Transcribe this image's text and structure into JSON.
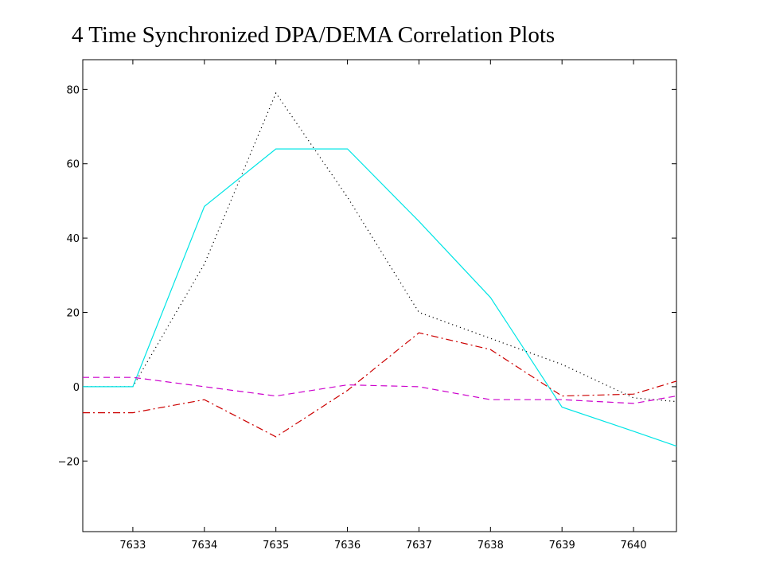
{
  "chart_data": {
    "type": "line",
    "title": "4 Time Synchronized DPA/DEMA Correlation Plots",
    "xlabel": "",
    "ylabel": "",
    "xlim": [
      7632.3,
      7640.6
    ],
    "ylim": [
      -39,
      88
    ],
    "xticks": [
      7633,
      7634,
      7635,
      7636,
      7637,
      7638,
      7639,
      7640
    ],
    "yticks": [
      -20,
      0,
      20,
      40,
      60,
      80
    ],
    "ytick_labels": [
      "−20",
      "0",
      "20",
      "40",
      "60",
      "80"
    ],
    "grid": false,
    "legend": "none",
    "series": [
      {
        "color": "#000000",
        "style": "dotted",
        "x": [
          7632.3,
          7633,
          7634,
          7635,
          7636,
          7637,
          7638,
          7639,
          7640,
          7640.6
        ],
        "y": [
          0,
          0,
          33,
          79,
          51,
          20,
          13,
          6,
          -3,
          -4
        ]
      },
      {
        "color": "#00e5e5",
        "style": "solid",
        "x": [
          7632.3,
          7633,
          7634,
          7635,
          7636,
          7637,
          7638,
          7639,
          7640,
          7640.6
        ],
        "y": [
          0,
          0,
          48.5,
          64,
          64,
          44.5,
          24,
          -5.5,
          -12,
          -16
        ]
      },
      {
        "color": "#cc0000",
        "style": "dashdot",
        "x": [
          7632.3,
          7633,
          7634,
          7635,
          7636,
          7637,
          7638,
          7639,
          7640,
          7640.6
        ],
        "y": [
          -7,
          -7,
          -3.5,
          -13.5,
          -1,
          14.5,
          10,
          -2.5,
          -2,
          1.5
        ]
      },
      {
        "color": "#cc00cc",
        "style": "dashed",
        "x": [
          7632.3,
          7633,
          7634,
          7635,
          7636,
          7637,
          7638,
          7639,
          7640,
          7640.6
        ],
        "y": [
          2.5,
          2.5,
          0,
          -2.5,
          0.5,
          0,
          -3.5,
          -3.5,
          -4.5,
          -2.5
        ]
      }
    ]
  }
}
